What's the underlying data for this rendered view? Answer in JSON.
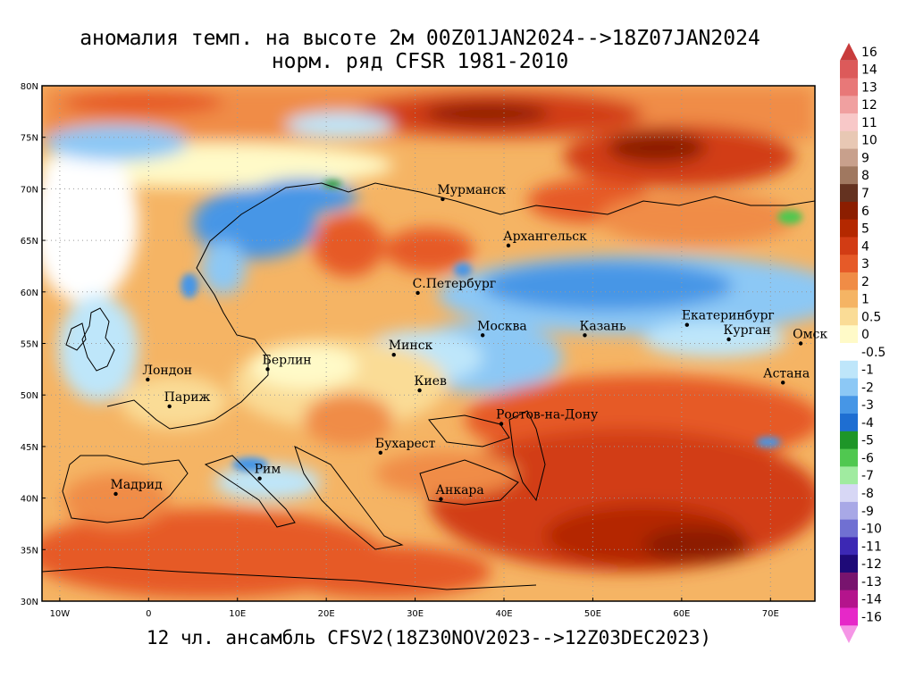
{
  "title": {
    "line1": "аномалия темп. на высоте 2м 00Z01JAN2024-->18Z07JAN2024",
    "line2": "норм. ряд CFSR 1981-2010"
  },
  "bottom_title": "12 чл. ансамбль CFSV2(18Z30NOV2023-->12Z03DEC2023)",
  "lat_ticks": [
    {
      "value": 80,
      "label": "80N"
    },
    {
      "value": 75,
      "label": "75N"
    },
    {
      "value": 70,
      "label": "70N"
    },
    {
      "value": 65,
      "label": "65N"
    },
    {
      "value": 60,
      "label": "60N"
    },
    {
      "value": 55,
      "label": "55N"
    },
    {
      "value": 50,
      "label": "50N"
    },
    {
      "value": 45,
      "label": "45N"
    },
    {
      "value": 40,
      "label": "40N"
    },
    {
      "value": 35,
      "label": "35N"
    },
    {
      "value": 30,
      "label": "30N"
    }
  ],
  "lon_ticks": [
    {
      "value": -10,
      "label": "10W"
    },
    {
      "value": 0,
      "label": "0"
    },
    {
      "value": 10,
      "label": "10E"
    },
    {
      "value": 20,
      "label": "20E"
    },
    {
      "value": 30,
      "label": "30E"
    },
    {
      "value": 40,
      "label": "40E"
    },
    {
      "value": 50,
      "label": "50E"
    },
    {
      "value": 60,
      "label": "60E"
    },
    {
      "value": 70,
      "label": "70E"
    }
  ],
  "map_extent": {
    "lon_min": -12,
    "lon_max": 75,
    "lat_min": 30,
    "lat_max": 80
  },
  "cities": [
    {
      "name": "Мурманск",
      "lon": 33.1,
      "lat": 69.0
    },
    {
      "name": "Архангельск",
      "lon": 40.5,
      "lat": 64.5
    },
    {
      "name": "С.Петербург",
      "lon": 30.3,
      "lat": 59.9
    },
    {
      "name": "Москва",
      "lon": 37.6,
      "lat": 55.8
    },
    {
      "name": "Казань",
      "lon": 49.1,
      "lat": 55.8
    },
    {
      "name": "Екатеринбург",
      "lon": 60.6,
      "lat": 56.8
    },
    {
      "name": "Курган",
      "lon": 65.3,
      "lat": 55.4
    },
    {
      "name": "Омск",
      "lon": 73.4,
      "lat": 55.0
    },
    {
      "name": "Астана",
      "lon": 71.4,
      "lat": 51.2
    },
    {
      "name": "Минск",
      "lon": 27.6,
      "lat": 53.9
    },
    {
      "name": "Берлин",
      "lon": 13.4,
      "lat": 52.5
    },
    {
      "name": "Лондон",
      "lon": -0.1,
      "lat": 51.5
    },
    {
      "name": "Париж",
      "lon": 2.35,
      "lat": 48.9
    },
    {
      "name": "Киев",
      "lon": 30.5,
      "lat": 50.45
    },
    {
      "name": "Ростов-на-Дону",
      "lon": 39.7,
      "lat": 47.2
    },
    {
      "name": "Бухарест",
      "lon": 26.1,
      "lat": 44.4
    },
    {
      "name": "Рим",
      "lon": 12.5,
      "lat": 41.9
    },
    {
      "name": "Мадрид",
      "lon": -3.7,
      "lat": 40.4
    },
    {
      "name": "Анкара",
      "lon": 32.9,
      "lat": 39.9
    }
  ],
  "colorbar": [
    {
      "label": "16",
      "color": "#c83c3c"
    },
    {
      "label": "14",
      "color": "#dc5a5a"
    },
    {
      "label": "13",
      "color": "#e87878"
    },
    {
      "label": "12",
      "color": "#f0a0a0"
    },
    {
      "label": "11",
      "color": "#f8c8c8"
    },
    {
      "label": "10",
      "color": "#e8c8b4"
    },
    {
      "label": "9",
      "color": "#c8a08c"
    },
    {
      "label": "8",
      "color": "#a07860"
    },
    {
      "label": "7",
      "color": "#643220"
    },
    {
      "label": "6",
      "color": "#8c1e00"
    },
    {
      "label": "5",
      "color": "#b42800"
    },
    {
      "label": "4",
      "color": "#d23c14"
    },
    {
      "label": "3",
      "color": "#e65a28"
    },
    {
      "label": "2",
      "color": "#f08c46"
    },
    {
      "label": "1",
      "color": "#f5b464"
    },
    {
      "label": "0.5",
      "color": "#fadc96"
    },
    {
      "label": "0",
      "color": "#fffac8"
    },
    {
      "label": "-0.5",
      "color": "#ffffff"
    },
    {
      "label": "-1",
      "color": "#bee6fa"
    },
    {
      "label": "-2",
      "color": "#8cc8f5"
    },
    {
      "label": "-3",
      "color": "#4696e6"
    },
    {
      "label": "-4",
      "color": "#1e6ed2"
    },
    {
      "label": "-5",
      "color": "#1e9628"
    },
    {
      "label": "-6",
      "color": "#50c850"
    },
    {
      "label": "-7",
      "color": "#a0eba0"
    },
    {
      "label": "-8",
      "color": "#d7d7f5"
    },
    {
      "label": "-9",
      "color": "#a8a8e6"
    },
    {
      "label": "-10",
      "color": "#7070d2"
    },
    {
      "label": "-11",
      "color": "#3c28b4"
    },
    {
      "label": "-12",
      "color": "#1e0a78"
    },
    {
      "label": "-13",
      "color": "#78146e"
    },
    {
      "label": "-14",
      "color": "#b4148c"
    },
    {
      "label": "-16",
      "color": "#e628c8"
    },
    {
      "label": "",
      "color": "#f596e6"
    }
  ]
}
